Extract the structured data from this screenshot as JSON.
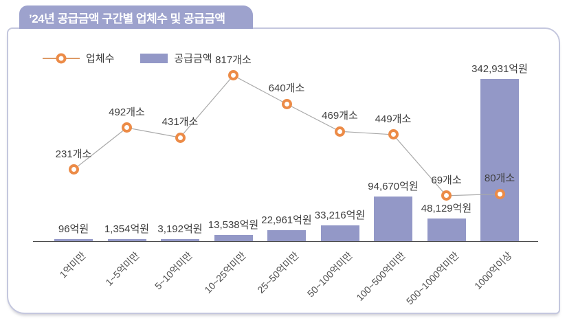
{
  "title": "’24년 공급금액 구간별 업체수 및 공급금액",
  "legend": {
    "line_label": "업체수",
    "bar_label": "공급금액"
  },
  "colors": {
    "bar": "#9398c7",
    "tab_bg": "#9da2cd",
    "marker_orange": "#ec8b47",
    "legend_line": "#dd9a66",
    "connector_line": "#a9a9a9",
    "label_text": "#404040",
    "axis_line": "#4a4a4a",
    "panel_border": "#c4c7de"
  },
  "chart_data": {
    "type": "combo: line + bar",
    "title": "’24년 공급금액 구간별 업체수 및 공급금액",
    "categories": [
      "1억미만",
      "1~5억미만",
      "5~10억미만",
      "10~25억미만",
      "25~50억미만",
      "50~100억미만",
      "100~500억미만",
      "500~1000억미만",
      "1000억이상"
    ],
    "series": [
      {
        "name": "업체수",
        "type": "line",
        "unit": "개소",
        "values": [
          231,
          492,
          431,
          817,
          640,
          469,
          449,
          69,
          80
        ],
        "labels": [
          "231개소",
          "492개소",
          "431개소",
          "817개소",
          "640개소",
          "469개소",
          "449개소",
          "69개소",
          "80개소"
        ]
      },
      {
        "name": "공급금액",
        "type": "bar",
        "unit": "억원",
        "values": [
          96,
          1354,
          3192,
          13538,
          22961,
          33216,
          94670,
          48129,
          342931
        ],
        "labels": [
          "96억원",
          "1,354억원",
          "3,192억원",
          "13,538억원",
          "22,961억원",
          "33,216억원",
          "94,670억원",
          "48,129억원",
          "342,931억원"
        ]
      }
    ],
    "legend_position": "top-left",
    "grid": false,
    "axes": {
      "x_axis_line_visible": true,
      "y_axis_ticks_visible": false,
      "x_tick_rotation_deg": -45
    },
    "data_labels_shown": true
  }
}
